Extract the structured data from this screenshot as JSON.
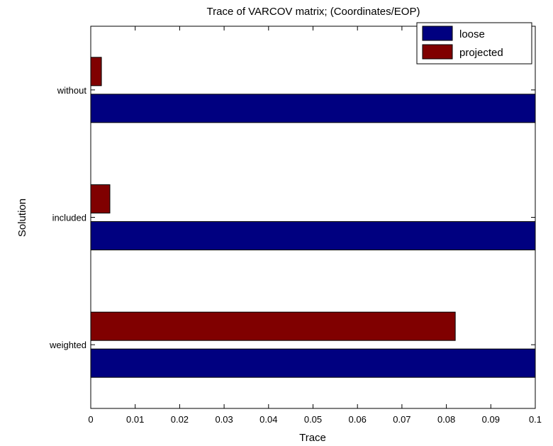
{
  "chart_data": {
    "type": "bar",
    "orientation": "horizontal",
    "title": "Trace of VARCOV matrix; (Coordinates/EOP)",
    "xlabel": "Trace",
    "ylabel": "Solution",
    "categories": [
      "weighted",
      "included",
      "without"
    ],
    "series": [
      {
        "name": "loose",
        "color": "#000080",
        "values": [
          0.1,
          0.1,
          0.1
        ]
      },
      {
        "name": "projected",
        "color": "#800000",
        "values": [
          0.082,
          0.0043,
          0.0024
        ]
      }
    ],
    "xlim": [
      0,
      0.1
    ],
    "xticks": [
      "0",
      "0.01",
      "0.02",
      "0.03",
      "0.04",
      "0.05",
      "0.06",
      "0.07",
      "0.08",
      "0.09",
      "0.1"
    ],
    "grid": false,
    "legend_position": "top-right"
  }
}
